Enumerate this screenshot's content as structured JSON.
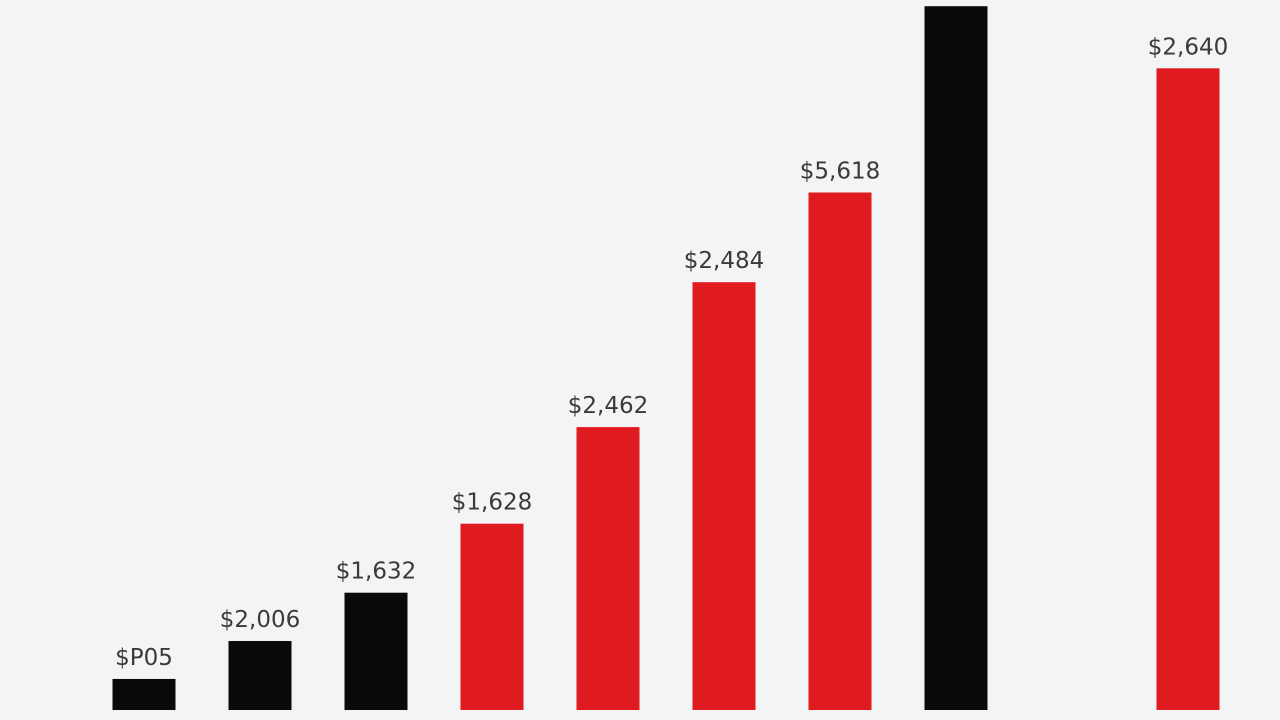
{
  "chart_data": {
    "type": "bar",
    "categories": [
      "",
      "",
      "",
      "",
      "",
      "",
      "",
      "",
      "",
      ""
    ],
    "values": [
      905,
      2006,
      1632,
      1628,
      2462,
      2484,
      5618,
      null,
      null,
      2640
    ],
    "bar_heights_relative": [
      0.045,
      0.1,
      0.17,
      0.27,
      0.41,
      0.62,
      0.75,
      1.02,
      null,
      0.93
    ],
    "data_labels": [
      "$P05",
      "$2,006",
      "$1,632",
      "$1,628",
      "$2,462",
      "$2,484",
      "$5,618",
      "",
      "",
      "$2,640"
    ],
    "bar_colors": [
      "#0a0a0a",
      "#0a0a0a",
      "#0a0a0a",
      "#e01b1f",
      "#e01b1f",
      "#e01b1f",
      "#e01b1f",
      "#0a0a0a",
      "",
      "#e01b1f"
    ],
    "title": "",
    "xlabel": "",
    "ylabel": "",
    "grid": false,
    "legend": "none"
  },
  "colors": {
    "background": "#f2f4f6",
    "red": "#e01b1f",
    "black": "#0a0a0a"
  }
}
